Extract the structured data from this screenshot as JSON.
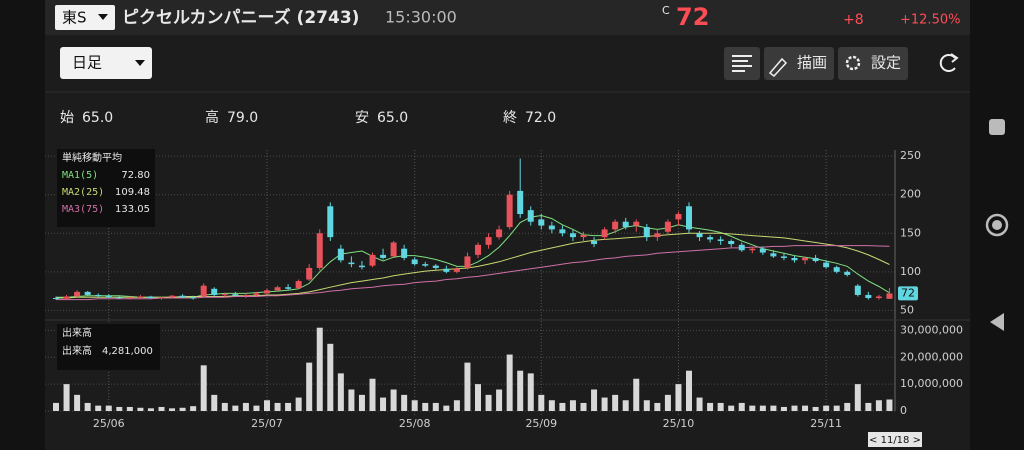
{
  "header": {
    "market": "東S",
    "name": "ピクセルカンパニーズ (2743)",
    "time": "15:30:00",
    "price_prefix": "C",
    "price": 72,
    "change": "+8",
    "change_pct": "+12.50%"
  },
  "toolbar": {
    "period": "日足",
    "draw": "描画",
    "settings": "設定"
  },
  "ohlc": [
    {
      "label": "始",
      "value": "65.0"
    },
    {
      "label": "高",
      "value": "79.0"
    },
    {
      "label": "安",
      "value": "65.0"
    },
    {
      "label": "終",
      "value": "72.0"
    }
  ],
  "price_chart": {
    "ylim": [
      44,
      258
    ],
    "yticks": [
      50,
      100,
      150,
      200,
      250
    ],
    "up_color": "#e8525a",
    "down_color": "#5fd6e0",
    "xticks": [
      {
        "value": 5,
        "label": "25/06"
      },
      {
        "value": 20,
        "label": "25/07"
      },
      {
        "value": 34,
        "label": "25/08"
      },
      {
        "value": 46,
        "label": "25/09"
      },
      {
        "value": 59,
        "label": "25/10"
      },
      {
        "value": 73,
        "label": "25/11"
      }
    ],
    "cursor_label": "< 11/18 >",
    "candles": [
      [
        66,
        68,
        64,
        65
      ],
      [
        65,
        70,
        64,
        68
      ],
      [
        68,
        76,
        67,
        74
      ],
      [
        74,
        75,
        69,
        70
      ],
      [
        70,
        72,
        67,
        69
      ],
      [
        69,
        71,
        66,
        67
      ],
      [
        67,
        69,
        65,
        66
      ],
      [
        66,
        68,
        64,
        67
      ],
      [
        67,
        70,
        65,
        68
      ],
      [
        68,
        69,
        65,
        66
      ],
      [
        66,
        68,
        64,
        67
      ],
      [
        67,
        70,
        66,
        69
      ],
      [
        69,
        71,
        66,
        67
      ],
      [
        67,
        69,
        64,
        66
      ],
      [
        68,
        85,
        67,
        82
      ],
      [
        78,
        80,
        68,
        70
      ],
      [
        70,
        73,
        67,
        71
      ],
      [
        71,
        74,
        68,
        69
      ],
      [
        69,
        72,
        66,
        70
      ],
      [
        70,
        74,
        68,
        72
      ],
      [
        72,
        78,
        71,
        76
      ],
      [
        76,
        82,
        74,
        80
      ],
      [
        80,
        84,
        76,
        78
      ],
      [
        79,
        90,
        78,
        88
      ],
      [
        90,
        110,
        88,
        105
      ],
      [
        105,
        155,
        102,
        150
      ],
      [
        185,
        190,
        140,
        145
      ],
      [
        130,
        135,
        112,
        115
      ],
      [
        112,
        120,
        106,
        110
      ],
      [
        108,
        114,
        103,
        106
      ],
      [
        108,
        125,
        106,
        122
      ],
      [
        122,
        130,
        116,
        118
      ],
      [
        120,
        140,
        118,
        138
      ],
      [
        130,
        135,
        115,
        118
      ],
      [
        116,
        119,
        108,
        110
      ],
      [
        110,
        113,
        106,
        108
      ],
      [
        108,
        110,
        103,
        105
      ],
      [
        104,
        108,
        98,
        100
      ],
      [
        100,
        106,
        98,
        104
      ],
      [
        105,
        125,
        103,
        120
      ],
      [
        122,
        138,
        118,
        135
      ],
      [
        135,
        150,
        130,
        145
      ],
      [
        145,
        160,
        142,
        155
      ],
      [
        158,
        205,
        155,
        200
      ],
      [
        205,
        247,
        170,
        175
      ],
      [
        180,
        185,
        160,
        165
      ],
      [
        168,
        175,
        155,
        160
      ],
      [
        160,
        165,
        150,
        155
      ],
      [
        155,
        160,
        146,
        150
      ],
      [
        150,
        155,
        140,
        145
      ],
      [
        145,
        152,
        138,
        148
      ],
      [
        140,
        145,
        132,
        136
      ],
      [
        145,
        158,
        142,
        155
      ],
      [
        155,
        168,
        150,
        165
      ],
      [
        165,
        170,
        155,
        158
      ],
      [
        160,
        168,
        152,
        165
      ],
      [
        158,
        162,
        140,
        145
      ],
      [
        145,
        155,
        140,
        150
      ],
      [
        152,
        168,
        148,
        165
      ],
      [
        168,
        178,
        160,
        175
      ],
      [
        185,
        190,
        150,
        155
      ],
      [
        150,
        153,
        140,
        145
      ],
      [
        145,
        148,
        138,
        142
      ],
      [
        142,
        146,
        135,
        140
      ],
      [
        140,
        142,
        132,
        136
      ],
      [
        135,
        138,
        126,
        128
      ],
      [
        128,
        132,
        124,
        130
      ],
      [
        130,
        133,
        122,
        125
      ],
      [
        124,
        128,
        118,
        120
      ],
      [
        120,
        124,
        115,
        118
      ],
      [
        118,
        121,
        112,
        115
      ],
      [
        115,
        120,
        110,
        118
      ],
      [
        118,
        122,
        112,
        114
      ],
      [
        112,
        115,
        104,
        106
      ],
      [
        106,
        108,
        98,
        100
      ],
      [
        100,
        102,
        94,
        96
      ],
      [
        82,
        84,
        68,
        70
      ],
      [
        70,
        74,
        64,
        66
      ],
      [
        66,
        70,
        64,
        68
      ],
      [
        65,
        79,
        65,
        72
      ]
    ],
    "legend_title": "単純移動平均",
    "ma": [
      {
        "name": "MA1(5)",
        "value_label": "72.80",
        "color": "#7fe07f",
        "values": [
          67,
          67,
          68,
          69,
          69,
          69,
          69,
          68,
          67,
          67,
          67,
          67,
          67,
          67,
          70,
          71,
          72,
          72,
          72,
          73,
          74,
          75,
          76,
          78,
          85,
          100,
          113,
          123,
          125,
          127,
          120,
          114,
          119,
          121,
          121,
          119,
          116,
          112,
          107,
          107,
          113,
          121,
          132,
          147,
          164,
          171,
          173,
          169,
          161,
          155,
          148,
          147,
          147,
          152,
          158,
          160,
          157,
          155,
          157,
          161,
          158,
          156,
          154,
          151,
          146,
          140,
          135,
          130,
          127,
          124,
          121,
          119,
          117,
          114,
          111,
          107,
          97,
          88,
          81,
          72.8
        ]
      },
      {
        "name": "MA2(25)",
        "value_label": "109.48",
        "color": "#c8d870",
        "values": [
          66,
          66,
          67,
          67,
          67,
          67,
          67,
          67,
          67,
          67,
          67,
          67,
          68,
          68,
          68,
          68,
          68,
          69,
          69,
          69,
          70,
          70,
          71,
          72,
          74,
          77,
          80,
          83,
          86,
          88,
          90,
          92,
          95,
          97,
          99,
          101,
          102,
          103,
          104,
          105,
          107,
          110,
          113,
          117,
          121,
          125,
          128,
          131,
          134,
          137,
          139,
          141,
          142,
          143,
          144,
          145,
          146,
          147,
          148,
          149,
          150,
          150,
          150,
          150,
          149,
          148,
          147,
          146,
          145,
          144,
          142,
          140,
          138,
          136,
          134,
          131,
          127,
          122,
          116,
          109.48
        ]
      },
      {
        "name": "MA3(75)",
        "value_label": "133.05",
        "color": "#d070a8",
        "values": [
          64,
          64,
          64,
          64,
          65,
          65,
          65,
          65,
          65,
          65,
          66,
          66,
          66,
          66,
          67,
          67,
          67,
          68,
          68,
          68,
          69,
          69,
          70,
          71,
          72,
          73,
          75,
          76,
          78,
          79,
          80,
          82,
          83,
          84,
          86,
          87,
          88,
          90,
          91,
          93,
          94,
          96,
          98,
          100,
          102,
          104,
          106,
          108,
          110,
          112,
          113,
          115,
          117,
          118,
          120,
          121,
          122,
          124,
          125,
          126,
          127,
          128,
          129,
          130,
          131,
          131,
          132,
          132,
          133,
          133,
          134,
          134,
          134,
          134,
          134,
          134,
          134,
          134,
          133.5,
          133.05
        ]
      }
    ]
  },
  "volume_chart": {
    "title": "出来高",
    "current_label": "出来高",
    "current_value": "4,281,000",
    "color": "#d8d8d8",
    "ylim": [
      0,
      32000000
    ],
    "yticks": [
      0,
      {
        "value": 10000000,
        "label": "10,000,000"
      },
      {
        "value": 20000000,
        "label": "20,000,000"
      },
      {
        "value": 30000000,
        "label": "30,000,000"
      }
    ],
    "values": [
      3000000,
      10000000,
      6000000,
      3000000,
      2000000,
      2000000,
      1500000,
      1500000,
      1200000,
      1000000,
      1500000,
      1000000,
      1200000,
      1800000,
      17000000,
      6000000,
      3000000,
      2000000,
      3000000,
      2000000,
      4000000,
      3000000,
      3000000,
      5000000,
      18000000,
      31000000,
      25000000,
      14000000,
      8000000,
      6000000,
      12000000,
      5000000,
      8000000,
      6000000,
      4000000,
      3000000,
      3000000,
      2000000,
      4000000,
      18000000,
      10000000,
      6000000,
      8000000,
      21000000,
      15000000,
      14000000,
      6000000,
      4000000,
      3000000,
      4000000,
      3000000,
      8000000,
      5000000,
      6000000,
      4000000,
      12000000,
      4000000,
      3000000,
      6000000,
      10000000,
      15000000,
      5000000,
      3000000,
      3000000,
      2000000,
      3000000,
      2000000,
      2000000,
      2000000,
      1500000,
      2000000,
      2000000,
      1500000,
      2000000,
      2000000,
      3000000,
      10000000,
      3000000,
      4000000,
      4281000
    ]
  }
}
